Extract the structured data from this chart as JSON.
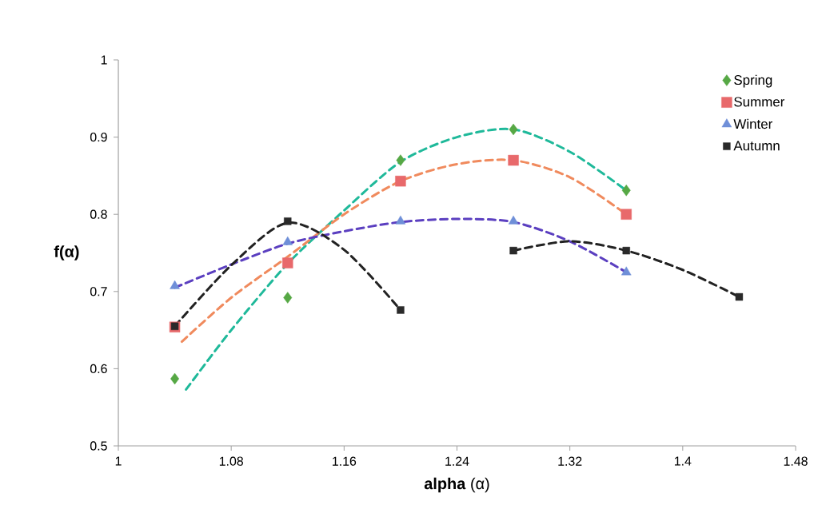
{
  "chart_data": {
    "type": "scatter",
    "xlabel": "**alpha** (α)",
    "ylabel": "f(α)",
    "xlim": [
      1,
      1.48
    ],
    "xticks": [
      1,
      1.08,
      1.16,
      1.24,
      1.32,
      1.4,
      1.48
    ],
    "ylim": [
      0.5,
      1
    ],
    "yticks": [
      0.5,
      0.6,
      0.7,
      0.8,
      0.9,
      1
    ],
    "legend": "top right",
    "series": [
      {
        "type": "line",
        "color": "#1fb99a",
        "line_style": "dashed",
        "marker": "none",
        "x": [
          1.048,
          1.08,
          1.12,
          1.16,
          1.2,
          1.24,
          1.28,
          1.32,
          1.36
        ],
        "values": [
          0.573,
          0.65,
          0.736,
          0.805,
          0.868,
          0.9,
          0.91,
          0.881,
          0.831
        ]
      },
      {
        "type": "line",
        "color": "#f08a5d",
        "line_style": "dashed",
        "marker": "none",
        "x": [
          1.045,
          1.08,
          1.12,
          1.16,
          1.2,
          1.24,
          1.28,
          1.32,
          1.36
        ],
        "values": [
          0.635,
          0.692,
          0.745,
          0.8,
          0.843,
          0.865,
          0.87,
          0.848,
          0.8
        ]
      },
      {
        "type": "line",
        "color": "#5b3fc0",
        "line_style": "dashed",
        "marker": "none",
        "x": [
          1.04,
          1.08,
          1.12,
          1.16,
          1.2,
          1.24,
          1.28,
          1.32,
          1.36
        ],
        "values": [
          0.705,
          0.735,
          0.762,
          0.778,
          0.79,
          0.794,
          0.79,
          0.765,
          0.725
        ]
      },
      {
        "type": "line",
        "color": "#222222",
        "line_style": "dashed",
        "marker": "none",
        "x": [
          1.04,
          1.08,
          1.12,
          1.16,
          1.2
        ],
        "values": [
          0.655,
          0.734,
          0.789,
          0.754,
          0.676
        ]
      },
      {
        "type": "line",
        "color": "#222222",
        "line_style": "dashed",
        "marker": "none",
        "x": [
          1.28,
          1.32,
          1.36,
          1.4,
          1.44
        ],
        "values": [
          0.753,
          0.765,
          0.753,
          0.728,
          0.693
        ]
      },
      {
        "name": "Spring",
        "type": "scatter",
        "color": "#56a845",
        "marker": "diamond",
        "x": [
          1.04,
          1.12,
          1.2,
          1.28,
          1.36
        ],
        "values": [
          0.587,
          0.692,
          0.87,
          0.91,
          0.831
        ]
      },
      {
        "name": "Summer",
        "type": "scatter",
        "color": "#e8696b",
        "marker": "square",
        "x": [
          1.04,
          1.12,
          1.2,
          1.28,
          1.36
        ],
        "values": [
          0.654,
          0.737,
          0.843,
          0.87,
          0.8
        ]
      },
      {
        "name": "Winter",
        "type": "scatter",
        "color": "#6f8fd8",
        "marker": "triangle",
        "x": [
          1.04,
          1.12,
          1.2,
          1.28,
          1.36
        ],
        "values": [
          0.707,
          0.764,
          0.791,
          0.791,
          0.725
        ]
      },
      {
        "name": "Autumn",
        "type": "scatter",
        "color": "#2a2a2a",
        "marker": "square",
        "x": [
          1.04,
          1.12,
          1.2,
          1.28,
          1.36,
          1.44
        ],
        "values": [
          0.655,
          0.791,
          0.676,
          0.753,
          0.753,
          0.693
        ]
      }
    ]
  }
}
